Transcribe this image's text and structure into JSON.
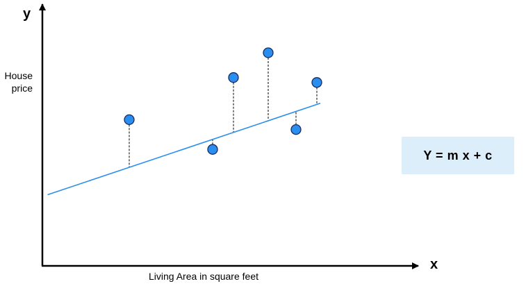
{
  "chart_data": {
    "type": "scatter",
    "title": "",
    "x_axis_letter": "x",
    "y_axis_letter": "y",
    "xlabel": "Living Area in square feet",
    "ylabel_lines": [
      "House",
      "price"
    ],
    "ticks_shown": false,
    "grid": false,
    "xlim": [
      0,
      10
    ],
    "ylim": [
      0,
      10
    ],
    "points": [
      {
        "x": 2.5,
        "y": 5.9
      },
      {
        "x": 4.9,
        "y": 4.7
      },
      {
        "x": 5.5,
        "y": 7.6
      },
      {
        "x": 6.5,
        "y": 8.6
      },
      {
        "x": 7.3,
        "y": 5.5
      },
      {
        "x": 7.9,
        "y": 7.4
      }
    ],
    "regression_line": {
      "slope": 0.47,
      "intercept": 2.8,
      "x_start": 0.15,
      "x_end": 8.0
    },
    "residuals_shown": true,
    "equation": "Y = m x + c",
    "colors": {
      "point_fill": "#2a8ef0",
      "point_stroke": "#1a2a60",
      "line": "#2a8ef0",
      "residual": "#000000",
      "equation_box": "#dbeefa",
      "axis": "#000000"
    }
  }
}
